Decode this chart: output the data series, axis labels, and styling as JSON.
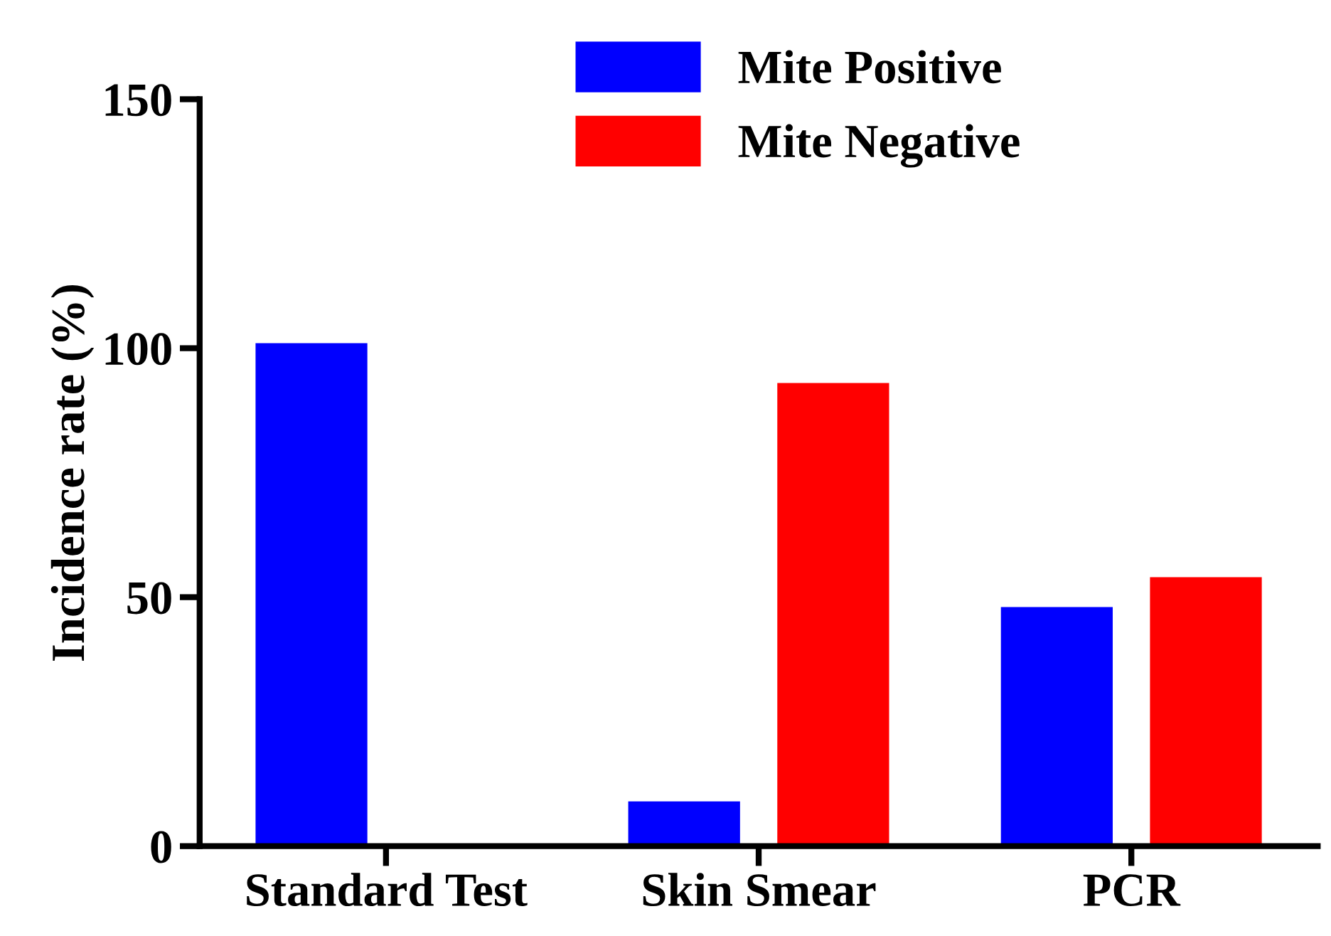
{
  "chart_data": {
    "type": "bar",
    "ylabel": "Incidence rate (%)",
    "categories": [
      "Standard Test",
      "Skin Smear",
      "PCR"
    ],
    "series": [
      {
        "name": "Mite Positive",
        "color": "#0000ff",
        "values": [
          101,
          9,
          48
        ]
      },
      {
        "name": "Mite Negative",
        "color": "#ff0000",
        "values": [
          0,
          93,
          54
        ]
      }
    ],
    "ylim": [
      0,
      150
    ],
    "yticks": [
      0,
      50,
      100,
      150
    ],
    "grid": false,
    "legend": "top"
  }
}
